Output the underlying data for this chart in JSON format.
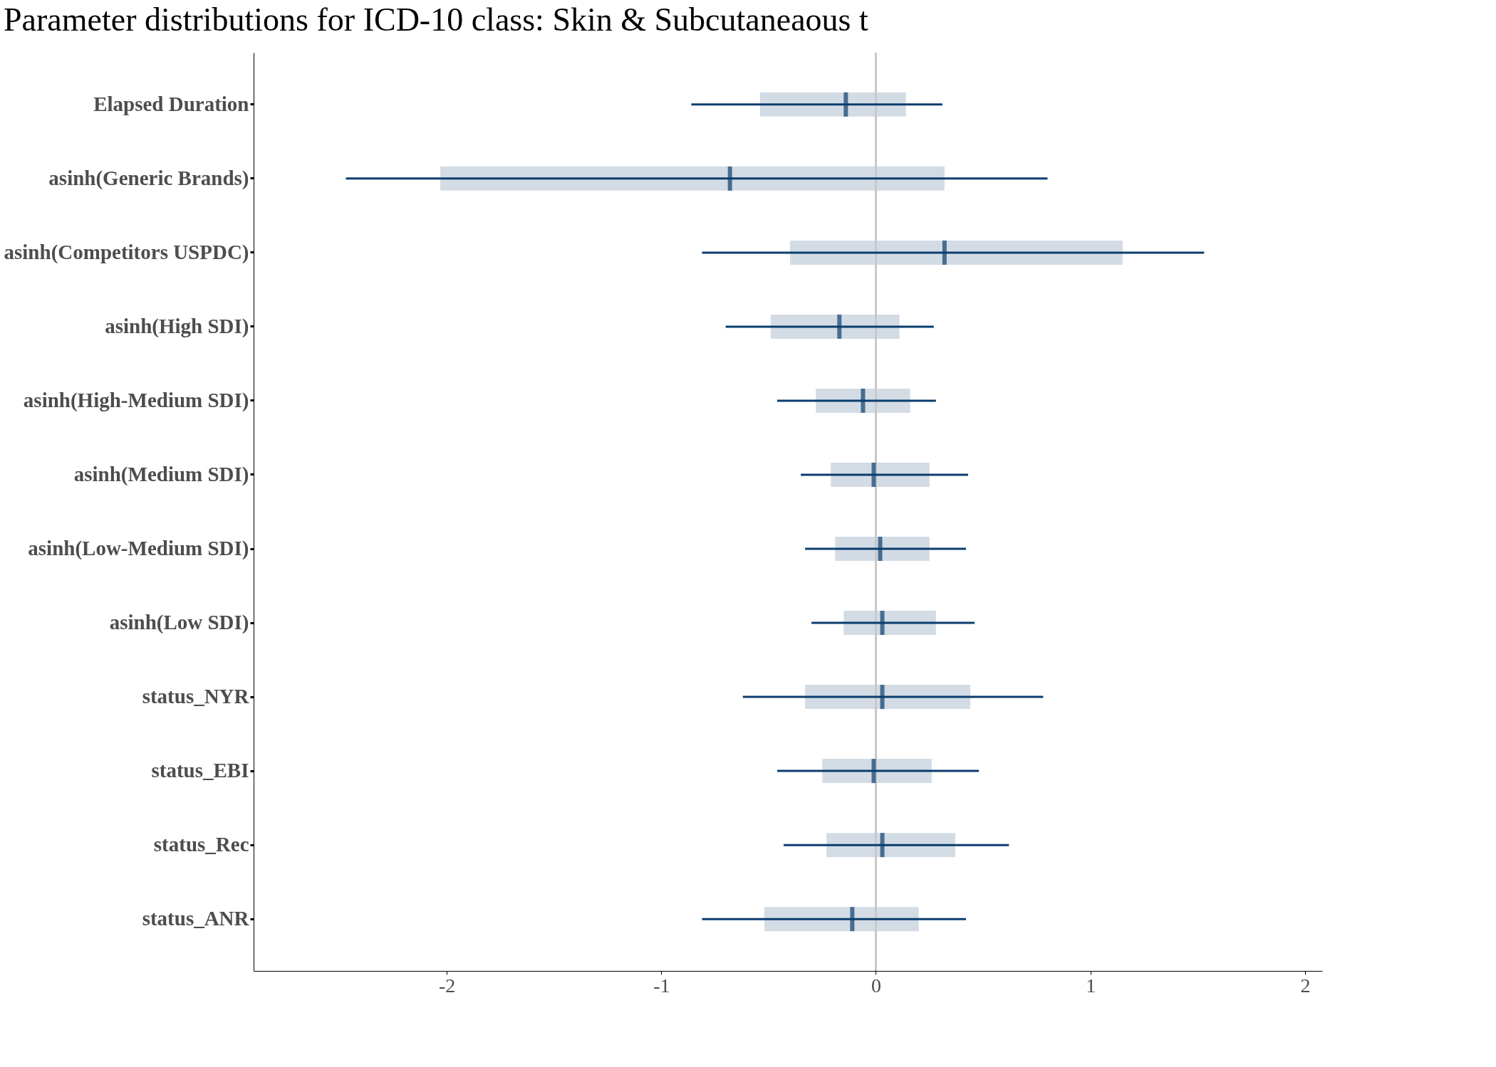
{
  "chart_data": {
    "type": "box",
    "orientation": "horizontal",
    "title": "Parameter distributions for ICD-10 class: Skin & Subcutaneaous t",
    "categories": [
      "Elapsed Duration",
      "asinh(Generic Brands)",
      "asinh(Competitors USPDC)",
      "asinh(High SDI)",
      "asinh(High-Medium SDI)",
      "asinh(Medium SDI)",
      "asinh(Low-Medium SDI)",
      "asinh(Low SDI)",
      "status_NYR",
      "status_EBI",
      "status_Rec",
      "status_ANR"
    ],
    "series": [
      {
        "color": "#0b3d6e",
        "boxes": [
          {
            "low": -0.86,
            "q1": -0.54,
            "median": -0.14,
            "q3": 0.14,
            "high": 0.31
          },
          {
            "low": -2.47,
            "q1": -2.03,
            "median": -0.68,
            "q3": 0.32,
            "high": 0.8
          },
          {
            "low": -0.81,
            "q1": -0.4,
            "median": 0.32,
            "q3": 1.15,
            "high": 1.53
          },
          {
            "low": -0.7,
            "q1": -0.49,
            "median": -0.17,
            "q3": 0.11,
            "high": 0.27
          },
          {
            "low": -0.46,
            "q1": -0.28,
            "median": -0.06,
            "q3": 0.16,
            "high": 0.28
          },
          {
            "low": -0.35,
            "q1": -0.21,
            "median": -0.01,
            "q3": 0.25,
            "high": 0.43
          },
          {
            "low": -0.33,
            "q1": -0.19,
            "median": 0.02,
            "q3": 0.25,
            "high": 0.42
          },
          {
            "low": -0.3,
            "q1": -0.15,
            "median": 0.03,
            "q3": 0.28,
            "high": 0.46
          },
          {
            "low": -0.62,
            "q1": -0.33,
            "median": 0.03,
            "q3": 0.44,
            "high": 0.78
          },
          {
            "low": -0.46,
            "q1": -0.25,
            "median": -0.01,
            "q3": 0.26,
            "high": 0.48
          },
          {
            "low": -0.43,
            "q1": -0.23,
            "median": 0.03,
            "q3": 0.37,
            "high": 0.62
          },
          {
            "low": -0.81,
            "q1": -0.52,
            "median": -0.11,
            "q3": 0.2,
            "high": 0.42
          }
        ]
      }
    ],
    "xlim": [
      -2.9,
      2.08
    ],
    "xticks": [
      -2,
      -1,
      0,
      1,
      2
    ],
    "ref_lines": [
      {
        "axis": "x",
        "value": 0,
        "color": "#c8c8c8"
      }
    ],
    "grid": false
  }
}
